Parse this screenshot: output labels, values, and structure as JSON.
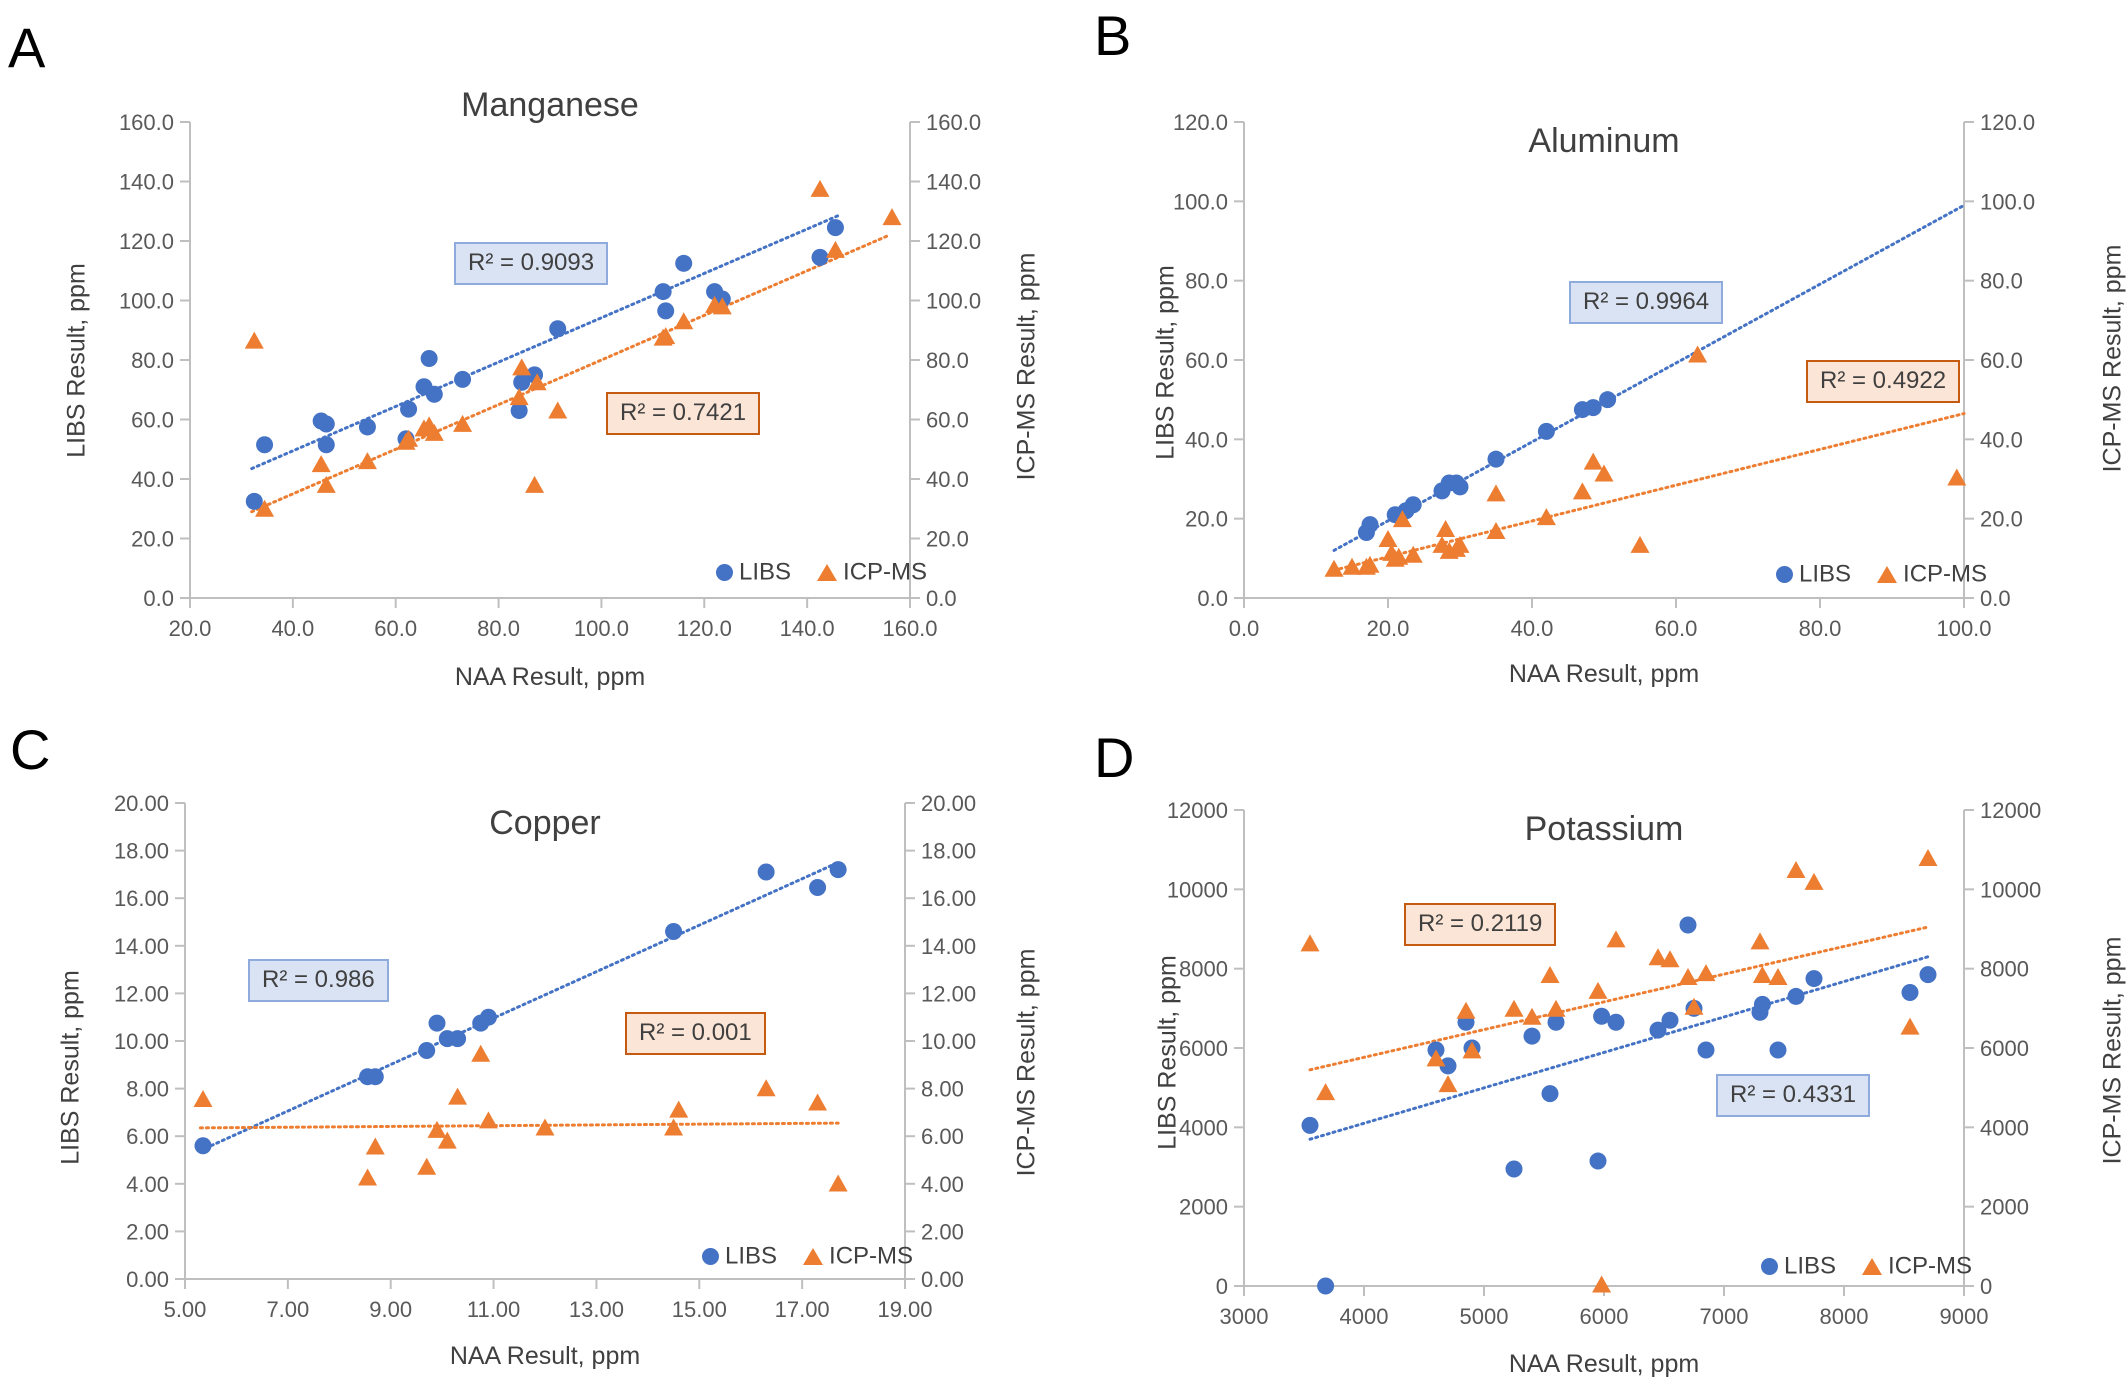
{
  "chart_data": [
    {
      "type": "scatter",
      "panel_label": "A",
      "title": "Manganese",
      "xlabel": "NAA Result, ppm",
      "ylabel": "LIBS Result, ppm",
      "y2label": "ICP-MS Result, ppm",
      "xlim": [
        20,
        160
      ],
      "ylim": [
        0,
        160
      ],
      "xticks": [
        20,
        40,
        60,
        80,
        100,
        120,
        140,
        160
      ],
      "yticks": [
        0,
        20,
        40,
        60,
        80,
        100,
        120,
        140,
        160
      ],
      "xtick_labels": [
        "20.0",
        "40.0",
        "60.0",
        "80.0",
        "100.0",
        "120.0",
        "140.0",
        "160.0"
      ],
      "ytick_labels": [
        "0.0",
        "20.0",
        "40.0",
        "60.0",
        "80.0",
        "100.0",
        "120.0",
        "140.0",
        "160.0"
      ],
      "y2tick_labels": [
        "0.0",
        "20.0",
        "40.0",
        "60.0",
        "80.0",
        "100.0",
        "120.0",
        "140.0",
        "160.0"
      ],
      "legend": [
        "LIBS",
        "ICP-MS"
      ],
      "series": [
        {
          "name": "LIBS",
          "color": "#4472c4",
          "marker": "circle",
          "r2": "R² = 0.9093",
          "trend_x": [
            32,
            146
          ],
          "trend_y": [
            43.5,
            128.5
          ],
          "points": [
            [
              32.5,
              32.5
            ],
            [
              34.5,
              51.5
            ],
            [
              45.5,
              59.5
            ],
            [
              46.5,
              58.5
            ],
            [
              46.5,
              51.5
            ],
            [
              54.5,
              57.5
            ],
            [
              62,
              53.5
            ],
            [
              62.5,
              63.5
            ],
            [
              65.5,
              71
            ],
            [
              66.5,
              80.5
            ],
            [
              67.5,
              68.5
            ],
            [
              73,
              73.5
            ],
            [
              84,
              63
            ],
            [
              84.5,
              72.5
            ],
            [
              87,
              75
            ],
            [
              91.5,
              90.5
            ],
            [
              112,
              103
            ],
            [
              112.5,
              96.5
            ],
            [
              116,
              112.5
            ],
            [
              122,
              103
            ],
            [
              123.5,
              100.5
            ],
            [
              142.5,
              114.5
            ],
            [
              145.5,
              124.5
            ]
          ]
        },
        {
          "name": "ICP-MS",
          "color": "#ed7d31",
          "marker": "triangle",
          "r2": "R² = 0.7421",
          "trend_x": [
            32,
            156
          ],
          "trend_y": [
            29,
            122
          ],
          "points": [
            [
              32.5,
              86
            ],
            [
              34.5,
              29.5
            ],
            [
              45.5,
              44.5
            ],
            [
              46.5,
              37.5
            ],
            [
              54.5,
              45.5
            ],
            [
              62,
              52
            ],
            [
              62.5,
              53
            ],
            [
              65.5,
              56.5
            ],
            [
              66.5,
              57.5
            ],
            [
              67.5,
              55
            ],
            [
              73,
              58
            ],
            [
              84,
              67
            ],
            [
              84.5,
              77
            ],
            [
              87,
              37.5
            ],
            [
              87.5,
              72
            ],
            [
              91.5,
              62.5
            ],
            [
              112,
              87
            ],
            [
              112.5,
              87.5
            ],
            [
              116,
              92.5
            ],
            [
              122,
              98
            ],
            [
              123.5,
              97.5
            ],
            [
              142.5,
              137
            ],
            [
              145.5,
              116.5
            ],
            [
              156.5,
              127.5
            ]
          ]
        }
      ]
    },
    {
      "type": "scatter",
      "panel_label": "B",
      "title": "Aluminum",
      "xlabel": "NAA Result, ppm",
      "ylabel": "LIBS Result, ppm",
      "y2label": "ICP-MS Result, ppm",
      "xlim": [
        0,
        100
      ],
      "ylim": [
        0,
        120
      ],
      "xticks": [
        0,
        20,
        40,
        60,
        80,
        100
      ],
      "yticks": [
        0,
        20,
        40,
        60,
        80,
        100,
        120
      ],
      "xtick_labels": [
        "0.0",
        "20.0",
        "40.0",
        "60.0",
        "80.0",
        "100.0"
      ],
      "ytick_labels": [
        "0.0",
        "20.0",
        "40.0",
        "60.0",
        "80.0",
        "100.0",
        "120.0"
      ],
      "y2tick_labels": [
        "0.0",
        "20.0",
        "40.0",
        "60.0",
        "80.0",
        "100.0",
        "120.0"
      ],
      "legend": [
        "LIBS",
        "ICP-MS"
      ],
      "series": [
        {
          "name": "LIBS",
          "color": "#4472c4",
          "marker": "circle",
          "r2": "R² = 0.9964",
          "trend_x": [
            12.5,
            100
          ],
          "trend_y": [
            12,
            99
          ],
          "points": [
            [
              17,
              16.5
            ],
            [
              17.5,
              18.5
            ],
            [
              21,
              21
            ],
            [
              22.5,
              22
            ],
            [
              23.5,
              23.5
            ],
            [
              27.5,
              27
            ],
            [
              28.5,
              29
            ],
            [
              29.5,
              29
            ],
            [
              30,
              28
            ],
            [
              35,
              35
            ],
            [
              42,
              42
            ],
            [
              47,
              47.5
            ],
            [
              48.5,
              48
            ],
            [
              50.5,
              50
            ]
          ]
        },
        {
          "name": "ICP-MS",
          "color": "#ed7d31",
          "marker": "triangle",
          "r2": "R² = 0.4922",
          "trend_x": [
            12.5,
            100
          ],
          "trend_y": [
            7,
            46.5
          ],
          "points": [
            [
              12.5,
              7
            ],
            [
              15,
              7.5
            ],
            [
              17,
              7.5
            ],
            [
              17.5,
              8
            ],
            [
              20,
              14.5
            ],
            [
              20.5,
              11
            ],
            [
              21,
              9.5
            ],
            [
              21.5,
              10
            ],
            [
              22,
              19.5
            ],
            [
              23.5,
              10.5
            ],
            [
              27.5,
              13
            ],
            [
              28,
              17
            ],
            [
              28.5,
              11.5
            ],
            [
              29.5,
              12
            ],
            [
              30,
              13
            ],
            [
              35,
              26
            ],
            [
              35,
              16.5
            ],
            [
              42,
              20
            ],
            [
              47,
              26.5
            ],
            [
              48.5,
              34
            ],
            [
              50,
              31
            ],
            [
              55,
              13
            ],
            [
              63,
              61
            ],
            [
              99,
              30
            ]
          ]
        }
      ]
    },
    {
      "type": "scatter",
      "panel_label": "C",
      "title": "Copper",
      "xlabel": "NAA Result, ppm",
      "ylabel": "LIBS Result, ppm",
      "y2label": "ICP-MS Result, ppm",
      "xlim": [
        5,
        19
      ],
      "ylim": [
        0,
        20
      ],
      "xticks": [
        5,
        7,
        9,
        11,
        13,
        15,
        17,
        19
      ],
      "yticks": [
        0,
        2,
        4,
        6,
        8,
        10,
        12,
        14,
        16,
        18,
        20
      ],
      "xtick_labels": [
        "5.00",
        "7.00",
        "9.00",
        "11.00",
        "13.00",
        "15.00",
        "17.00",
        "19.00"
      ],
      "ytick_labels": [
        "0.00",
        "2.00",
        "4.00",
        "6.00",
        "8.00",
        "10.00",
        "12.00",
        "14.00",
        "16.00",
        "18.00",
        "20.00"
      ],
      "y2tick_labels": [
        "0.00",
        "2.00",
        "4.00",
        "6.00",
        "8.00",
        "10.00",
        "12.00",
        "14.00",
        "16.00",
        "18.00",
        "20.00"
      ],
      "legend": [
        "LIBS",
        "ICP-MS"
      ],
      "series": [
        {
          "name": "LIBS",
          "color": "#4472c4",
          "marker": "circle",
          "r2": "R² = 0.986",
          "trend_x": [
            5.3,
            17.7
          ],
          "trend_y": [
            5.4,
            17.5
          ],
          "points": [
            [
              5.35,
              5.6
            ],
            [
              8.55,
              8.5
            ],
            [
              8.7,
              8.5
            ],
            [
              9.7,
              9.6
            ],
            [
              9.9,
              10.75
            ],
            [
              10.1,
              10.1
            ],
            [
              10.3,
              10.1
            ],
            [
              10.75,
              10.75
            ],
            [
              10.9,
              11
            ],
            [
              14.5,
              14.6
            ],
            [
              16.3,
              17.1
            ],
            [
              17.3,
              16.45
            ],
            [
              17.7,
              17.2
            ]
          ]
        },
        {
          "name": "ICP-MS",
          "color": "#ed7d31",
          "marker": "triangle",
          "r2": "R² = 0.001",
          "trend_x": [
            5.3,
            17.7
          ],
          "trend_y": [
            6.35,
            6.55
          ],
          "points": [
            [
              5.35,
              7.5
            ],
            [
              8.55,
              4.2
            ],
            [
              8.7,
              5.5
            ],
            [
              9.7,
              4.65
            ],
            [
              9.9,
              6.2
            ],
            [
              10.1,
              5.75
            ],
            [
              10.3,
              7.6
            ],
            [
              10.75,
              9.4
            ],
            [
              10.9,
              6.6
            ],
            [
              12,
              6.3
            ],
            [
              14.5,
              6.3
            ],
            [
              14.6,
              7.05
            ],
            [
              16.3,
              7.95
            ],
            [
              17.3,
              7.35
            ],
            [
              17.7,
              3.95
            ]
          ]
        }
      ]
    },
    {
      "type": "scatter",
      "panel_label": "D",
      "title": "Potassium",
      "xlabel": "NAA Result, ppm",
      "ylabel": "LIBS Result, ppm",
      "y2label": "ICP-MS Result, ppm",
      "xlim": [
        3000,
        9000
      ],
      "ylim": [
        0,
        12000
      ],
      "xticks": [
        3000,
        4000,
        5000,
        6000,
        7000,
        8000,
        9000
      ],
      "yticks": [
        0,
        2000,
        4000,
        6000,
        8000,
        10000,
        12000
      ],
      "xtick_labels": [
        "3000",
        "4000",
        "5000",
        "6000",
        "7000",
        "8000",
        "9000"
      ],
      "ytick_labels": [
        "0",
        "2000",
        "4000",
        "6000",
        "8000",
        "10000",
        "12000"
      ],
      "y2tick_labels": [
        "0",
        "2000",
        "4000",
        "6000",
        "8000",
        "10000",
        "12000"
      ],
      "legend": [
        "LIBS",
        "ICP-MS"
      ],
      "series": [
        {
          "name": "LIBS",
          "color": "#4472c4",
          "marker": "circle",
          "r2": "R² = 0.4331",
          "trend_x": [
            3550,
            8700
          ],
          "trend_y": [
            3700,
            8300
          ],
          "points": [
            [
              3550,
              4050
            ],
            [
              3680,
              0
            ],
            [
              4600,
              5950
            ],
            [
              4700,
              5550
            ],
            [
              4850,
              6650
            ],
            [
              4900,
              6000
            ],
            [
              5250,
              2950
            ],
            [
              5400,
              6300
            ],
            [
              5550,
              4850
            ],
            [
              5600,
              6650
            ],
            [
              5950,
              3150
            ],
            [
              5980,
              6800
            ],
            [
              6100,
              6650
            ],
            [
              6450,
              6450
            ],
            [
              6550,
              6700
            ],
            [
              6700,
              9100
            ],
            [
              6750,
              7000
            ],
            [
              6850,
              5950
            ],
            [
              7300,
              6900
            ],
            [
              7320,
              7100
            ],
            [
              7450,
              5950
            ],
            [
              7600,
              7300
            ],
            [
              7750,
              7750
            ],
            [
              8550,
              7400
            ],
            [
              8700,
              7850
            ]
          ]
        },
        {
          "name": "ICP-MS",
          "color": "#ed7d31",
          "marker": "triangle",
          "r2": "R² = 0.2119",
          "trend_x": [
            3550,
            8700
          ],
          "trend_y": [
            5450,
            9050
          ],
          "points": [
            [
              3550,
              8600
            ],
            [
              3680,
              4850
            ],
            [
              4600,
              5700
            ],
            [
              4700,
              5050
            ],
            [
              4850,
              6900
            ],
            [
              4900,
              5900
            ],
            [
              5250,
              6950
            ],
            [
              5400,
              6750
            ],
            [
              5550,
              7800
            ],
            [
              5600,
              6950
            ],
            [
              5950,
              7400
            ],
            [
              5980,
              0
            ],
            [
              6100,
              8700
            ],
            [
              6450,
              8250
            ],
            [
              6550,
              8200
            ],
            [
              6700,
              7750
            ],
            [
              6750,
              7000
            ],
            [
              6850,
              7850
            ],
            [
              7300,
              8650
            ],
            [
              7320,
              7800
            ],
            [
              7450,
              7750
            ],
            [
              7600,
              10450
            ],
            [
              7750,
              10150
            ],
            [
              8550,
              6500
            ],
            [
              8700,
              10750
            ]
          ]
        }
      ]
    }
  ]
}
